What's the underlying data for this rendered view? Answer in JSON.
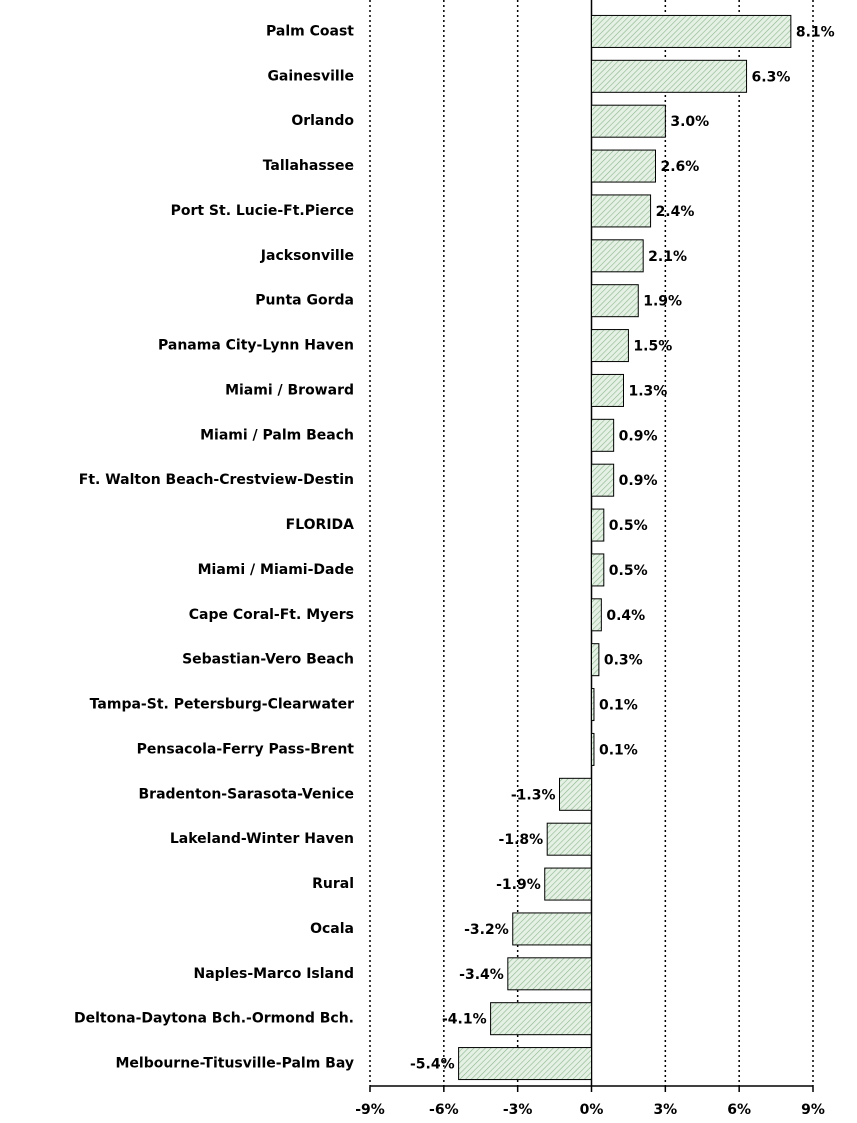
{
  "chart_data": {
    "type": "barh",
    "categories": [
      "Palm Coast",
      "Gainesville",
      "Orlando",
      "Tallahassee",
      "Port St. Lucie-Ft.Pierce",
      "Jacksonville",
      "Punta Gorda",
      "Panama City-Lynn Haven",
      "Miami / Broward",
      "Miami / Palm Beach",
      "Ft. Walton Beach-Crestview-Destin",
      "FLORIDA",
      "Miami / Miami-Dade",
      "Cape Coral-Ft. Myers",
      "Sebastian-Vero Beach",
      "Tampa-St. Petersburg-Clearwater",
      "Pensacola-Ferry Pass-Brent",
      "Bradenton-Sarasota-Venice",
      "Lakeland-Winter Haven",
      "Rural",
      "Ocala",
      "Naples-Marco Island",
      "Deltona-Daytona Bch.-Ormond Bch.",
      "Melbourne-Titusville-Palm Bay"
    ],
    "values": [
      8.1,
      6.3,
      3.0,
      2.6,
      2.4,
      2.1,
      1.9,
      1.5,
      1.3,
      0.9,
      0.9,
      0.5,
      0.5,
      0.4,
      0.3,
      0.1,
      0.1,
      -1.3,
      -1.8,
      -1.9,
      -3.2,
      -3.4,
      -4.1,
      -5.4
    ],
    "value_labels": [
      "8.1%",
      "6.3%",
      "3.0%",
      "2.6%",
      "2.4%",
      "2.1%",
      "1.9%",
      "1.5%",
      "1.3%",
      "0.9%",
      "0.9%",
      "0.5%",
      "0.5%",
      "0.4%",
      "0.3%",
      "0.1%",
      "0.1%",
      "-1.3%",
      "-1.8%",
      "-1.9%",
      "-3.2%",
      "-3.4%",
      "-4.1%",
      "-5.4%"
    ],
    "color": "#cfe6cf",
    "xlim": [
      -9,
      9
    ],
    "xticks": [
      {
        "value": -9,
        "label": "-9%"
      },
      {
        "value": -6,
        "label": "-6%"
      },
      {
        "value": -3,
        "label": "-3%"
      },
      {
        "value": 0,
        "label": "0%"
      },
      {
        "value": 3,
        "label": "3%"
      },
      {
        "value": 6,
        "label": "6%"
      },
      {
        "value": 9,
        "label": "9%"
      }
    ],
    "grid": true
  }
}
